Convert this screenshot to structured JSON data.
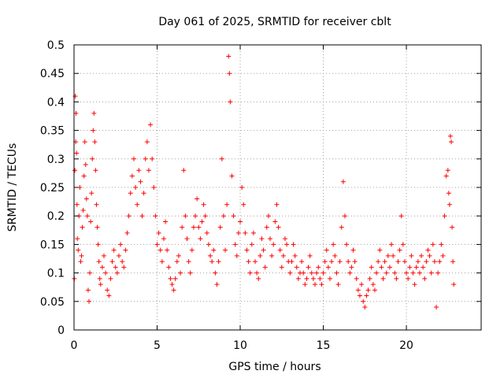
{
  "chart_data": {
    "type": "scatter",
    "title": "Day 061 of 2025, SRMTID for receiver cblt",
    "xlabel": "GPS time / hours",
    "ylabel": "SRMTID / TECUs",
    "xlim": [
      0,
      24.5
    ],
    "ylim": [
      0,
      0.5
    ],
    "x_ticks": [
      0,
      5,
      10,
      15,
      20
    ],
    "x_tick_labels": [
      "0",
      "5",
      "10",
      "15",
      "20"
    ],
    "y_ticks": [
      0,
      0.05,
      0.1,
      0.15,
      0.2,
      0.25,
      0.3,
      0.35,
      0.4,
      0.45,
      0.5
    ],
    "y_tick_labels": [
      "0",
      "0.05",
      "0.1",
      "0.15",
      "0.2",
      "0.25",
      "0.3",
      "0.35",
      "0.4",
      "0.45",
      "0.5"
    ],
    "grid": true,
    "marker": "+",
    "colors": {
      "points": "#ff0000",
      "grid": "#a0a0a0",
      "axis": "#000000"
    },
    "series": [
      {
        "name": "SRMTID",
        "points": [
          [
            0.02,
            0.09
          ],
          [
            0.05,
            0.28
          ],
          [
            0.07,
            0.41
          ],
          [
            0.1,
            0.33
          ],
          [
            0.12,
            0.38
          ],
          [
            0.15,
            0.31
          ],
          [
            0.18,
            0.22
          ],
          [
            0.2,
            0.16
          ],
          [
            0.25,
            0.14
          ],
          [
            0.3,
            0.2
          ],
          [
            0.35,
            0.25
          ],
          [
            0.4,
            0.12
          ],
          [
            0.45,
            0.13
          ],
          [
            0.5,
            0.18
          ],
          [
            0.55,
            0.21
          ],
          [
            0.6,
            0.27
          ],
          [
            0.65,
            0.33
          ],
          [
            0.7,
            0.29
          ],
          [
            0.75,
            0.23
          ],
          [
            0.8,
            0.2
          ],
          [
            0.85,
            0.07
          ],
          [
            0.9,
            0.05
          ],
          [
            0.95,
            0.1
          ],
          [
            1.0,
            0.19
          ],
          [
            1.05,
            0.24
          ],
          [
            1.1,
            0.3
          ],
          [
            1.15,
            0.35
          ],
          [
            1.2,
            0.38
          ],
          [
            1.25,
            0.33
          ],
          [
            1.3,
            0.28
          ],
          [
            1.35,
            0.22
          ],
          [
            1.4,
            0.18
          ],
          [
            1.45,
            0.15
          ],
          [
            1.5,
            0.12
          ],
          [
            1.55,
            0.09
          ],
          [
            1.6,
            0.08
          ],
          [
            1.7,
            0.11
          ],
          [
            1.8,
            0.13
          ],
          [
            1.9,
            0.1
          ],
          [
            2.0,
            0.07
          ],
          [
            2.1,
            0.06
          ],
          [
            2.2,
            0.09
          ],
          [
            2.3,
            0.12
          ],
          [
            2.4,
            0.14
          ],
          [
            2.5,
            0.11
          ],
          [
            2.6,
            0.1
          ],
          [
            2.7,
            0.13
          ],
          [
            2.8,
            0.15
          ],
          [
            2.9,
            0.12
          ],
          [
            3.0,
            0.11
          ],
          [
            3.1,
            0.14
          ],
          [
            3.2,
            0.17
          ],
          [
            3.3,
            0.2
          ],
          [
            3.4,
            0.24
          ],
          [
            3.5,
            0.27
          ],
          [
            3.6,
            0.3
          ],
          [
            3.7,
            0.25
          ],
          [
            3.8,
            0.22
          ],
          [
            3.9,
            0.28
          ],
          [
            4.0,
            0.26
          ],
          [
            4.1,
            0.2
          ],
          [
            4.2,
            0.24
          ],
          [
            4.3,
            0.3
          ],
          [
            4.4,
            0.33
          ],
          [
            4.5,
            0.28
          ],
          [
            4.6,
            0.36
          ],
          [
            4.7,
            0.3
          ],
          [
            4.8,
            0.25
          ],
          [
            4.9,
            0.2
          ],
          [
            5.0,
            0.15
          ],
          [
            5.1,
            0.17
          ],
          [
            5.2,
            0.14
          ],
          [
            5.3,
            0.12
          ],
          [
            5.4,
            0.16
          ],
          [
            5.5,
            0.19
          ],
          [
            5.6,
            0.14
          ],
          [
            5.7,
            0.11
          ],
          [
            5.8,
            0.09
          ],
          [
            5.9,
            0.08
          ],
          [
            6.0,
            0.07
          ],
          [
            6.1,
            0.09
          ],
          [
            6.2,
            0.12
          ],
          [
            6.3,
            0.13
          ],
          [
            6.4,
            0.1
          ],
          [
            6.5,
            0.18
          ],
          [
            6.6,
            0.28
          ],
          [
            6.7,
            0.2
          ],
          [
            6.8,
            0.16
          ],
          [
            6.9,
            0.12
          ],
          [
            7.0,
            0.1
          ],
          [
            7.1,
            0.14
          ],
          [
            7.2,
            0.18
          ],
          [
            7.3,
            0.2
          ],
          [
            7.4,
            0.23
          ],
          [
            7.5,
            0.18
          ],
          [
            7.6,
            0.16
          ],
          [
            7.7,
            0.19
          ],
          [
            7.8,
            0.22
          ],
          [
            7.9,
            0.2
          ],
          [
            8.0,
            0.17
          ],
          [
            8.1,
            0.15
          ],
          [
            8.2,
            0.13
          ],
          [
            8.3,
            0.12
          ],
          [
            8.4,
            0.14
          ],
          [
            8.5,
            0.1
          ],
          [
            8.6,
            0.08
          ],
          [
            8.7,
            0.12
          ],
          [
            8.8,
            0.18
          ],
          [
            8.9,
            0.3
          ],
          [
            9.0,
            0.2
          ],
          [
            9.1,
            0.14
          ],
          [
            9.2,
            0.22
          ],
          [
            9.3,
            0.48
          ],
          [
            9.35,
            0.45
          ],
          [
            9.4,
            0.4
          ],
          [
            9.5,
            0.27
          ],
          [
            9.6,
            0.2
          ],
          [
            9.7,
            0.15
          ],
          [
            9.8,
            0.13
          ],
          [
            9.9,
            0.17
          ],
          [
            10.0,
            0.19
          ],
          [
            10.1,
            0.25
          ],
          [
            10.2,
            0.22
          ],
          [
            10.3,
            0.17
          ],
          [
            10.4,
            0.14
          ],
          [
            10.5,
            0.12
          ],
          [
            10.6,
            0.1
          ],
          [
            10.7,
            0.15
          ],
          [
            10.8,
            0.17
          ],
          [
            10.9,
            0.12
          ],
          [
            11.0,
            0.1
          ],
          [
            11.1,
            0.09
          ],
          [
            11.2,
            0.13
          ],
          [
            11.3,
            0.16
          ],
          [
            11.4,
            0.14
          ],
          [
            11.5,
            0.11
          ],
          [
            11.6,
            0.18
          ],
          [
            11.7,
            0.2
          ],
          [
            11.8,
            0.16
          ],
          [
            11.9,
            0.13
          ],
          [
            12.0,
            0.15
          ],
          [
            12.1,
            0.19
          ],
          [
            12.2,
            0.22
          ],
          [
            12.3,
            0.18
          ],
          [
            12.4,
            0.14
          ],
          [
            12.5,
            0.11
          ],
          [
            12.6,
            0.13
          ],
          [
            12.7,
            0.16
          ],
          [
            12.8,
            0.15
          ],
          [
            12.9,
            0.12
          ],
          [
            13.0,
            0.1
          ],
          [
            13.1,
            0.12
          ],
          [
            13.2,
            0.15
          ],
          [
            13.3,
            0.13
          ],
          [
            13.4,
            0.11
          ],
          [
            13.5,
            0.09
          ],
          [
            13.6,
            0.1
          ],
          [
            13.7,
            0.12
          ],
          [
            13.8,
            0.1
          ],
          [
            13.9,
            0.08
          ],
          [
            14.0,
            0.09
          ],
          [
            14.1,
            0.11
          ],
          [
            14.2,
            0.13
          ],
          [
            14.3,
            0.1
          ],
          [
            14.4,
            0.09
          ],
          [
            14.5,
            0.08
          ],
          [
            14.6,
            0.1
          ],
          [
            14.7,
            0.11
          ],
          [
            14.8,
            0.09
          ],
          [
            14.9,
            0.08
          ],
          [
            15.0,
            0.1
          ],
          [
            15.1,
            0.12
          ],
          [
            15.2,
            0.14
          ],
          [
            15.3,
            0.11
          ],
          [
            15.4,
            0.09
          ],
          [
            15.5,
            0.12
          ],
          [
            15.6,
            0.15
          ],
          [
            15.7,
            0.13
          ],
          [
            15.8,
            0.1
          ],
          [
            15.9,
            0.08
          ],
          [
            16.0,
            0.12
          ],
          [
            16.1,
            0.18
          ],
          [
            16.2,
            0.26
          ],
          [
            16.3,
            0.2
          ],
          [
            16.4,
            0.15
          ],
          [
            16.5,
            0.12
          ],
          [
            16.6,
            0.1
          ],
          [
            16.7,
            0.11
          ],
          [
            16.8,
            0.14
          ],
          [
            16.9,
            0.12
          ],
          [
            17.0,
            0.09
          ],
          [
            17.1,
            0.07
          ],
          [
            17.2,
            0.06
          ],
          [
            17.3,
            0.08
          ],
          [
            17.4,
            0.05
          ],
          [
            17.5,
            0.04
          ],
          [
            17.6,
            0.06
          ],
          [
            17.7,
            0.07
          ],
          [
            17.8,
            0.09
          ],
          [
            17.9,
            0.11
          ],
          [
            18.0,
            0.08
          ],
          [
            18.1,
            0.07
          ],
          [
            18.2,
            0.1
          ],
          [
            18.3,
            0.12
          ],
          [
            18.4,
            0.14
          ],
          [
            18.5,
            0.11
          ],
          [
            18.6,
            0.09
          ],
          [
            18.7,
            0.12
          ],
          [
            18.8,
            0.1
          ],
          [
            18.9,
            0.13
          ],
          [
            19.0,
            0.11
          ],
          [
            19.1,
            0.15
          ],
          [
            19.2,
            0.13
          ],
          [
            19.3,
            0.1
          ],
          [
            19.4,
            0.09
          ],
          [
            19.5,
            0.12
          ],
          [
            19.6,
            0.14
          ],
          [
            19.7,
            0.2
          ],
          [
            19.8,
            0.15
          ],
          [
            19.9,
            0.12
          ],
          [
            20.0,
            0.1
          ],
          [
            20.1,
            0.09
          ],
          [
            20.2,
            0.11
          ],
          [
            20.3,
            0.13
          ],
          [
            20.4,
            0.1
          ],
          [
            20.5,
            0.08
          ],
          [
            20.6,
            0.11
          ],
          [
            20.7,
            0.12
          ],
          [
            20.8,
            0.1
          ],
          [
            20.9,
            0.13
          ],
          [
            21.0,
            0.11
          ],
          [
            21.1,
            0.09
          ],
          [
            21.2,
            0.12
          ],
          [
            21.3,
            0.14
          ],
          [
            21.4,
            0.13
          ],
          [
            21.5,
            0.1
          ],
          [
            21.6,
            0.15
          ],
          [
            21.7,
            0.12
          ],
          [
            21.8,
            0.04
          ],
          [
            21.9,
            0.1
          ],
          [
            22.0,
            0.12
          ],
          [
            22.1,
            0.15
          ],
          [
            22.2,
            0.13
          ],
          [
            22.3,
            0.2
          ],
          [
            22.4,
            0.27
          ],
          [
            22.5,
            0.28
          ],
          [
            22.55,
            0.24
          ],
          [
            22.6,
            0.22
          ],
          [
            22.65,
            0.34
          ],
          [
            22.7,
            0.33
          ],
          [
            22.75,
            0.18
          ],
          [
            22.8,
            0.12
          ],
          [
            22.85,
            0.08
          ]
        ]
      }
    ]
  }
}
